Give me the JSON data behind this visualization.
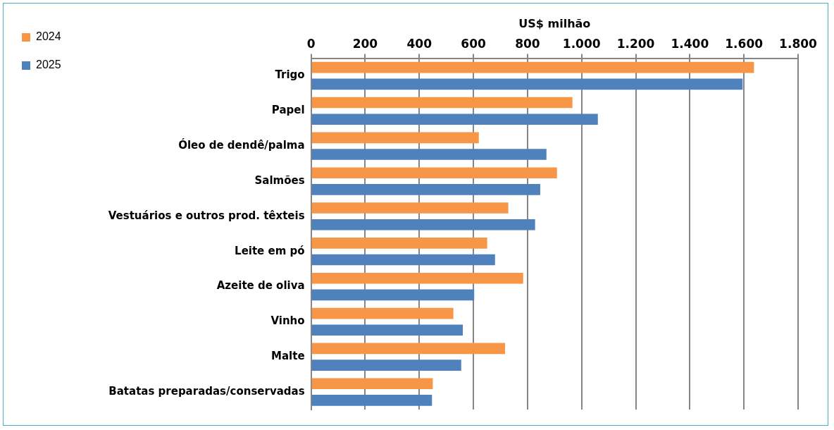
{
  "chart_data": {
    "type": "bar",
    "orientation": "horizontal",
    "xlabel": "US$ milhão",
    "categories": [
      "Trigo",
      "Papel",
      "Óleo de dendê/palma",
      "Salmões",
      "Vestuários e outros prod. têxteis",
      "Leite em pó",
      "Azeite de oliva",
      "Vinho",
      "Malte",
      "Batatas preparadas/conservadas"
    ],
    "series": [
      {
        "name": "2024",
        "color": "#f79646",
        "values": [
          1637,
          966,
          620,
          909,
          729,
          651,
          784,
          526,
          717,
          450
        ]
      },
      {
        "name": "2025",
        "color": "#4f81bd",
        "values": [
          1595,
          1060,
          870,
          847,
          828,
          680,
          603,
          561,
          555,
          447
        ]
      }
    ],
    "xlim": [
      0,
      1800
    ],
    "xticks": [
      0,
      200,
      400,
      600,
      800,
      {
        "value": 1000,
        "label": "1.000"
      },
      {
        "value": 1200,
        "label": "1.200"
      },
      {
        "value": 1400,
        "label": "1.400"
      },
      {
        "value": 1600,
        "label": "1.600"
      },
      {
        "value": 1800,
        "label": "1.800"
      }
    ],
    "grid": "x",
    "legend": "top left"
  }
}
